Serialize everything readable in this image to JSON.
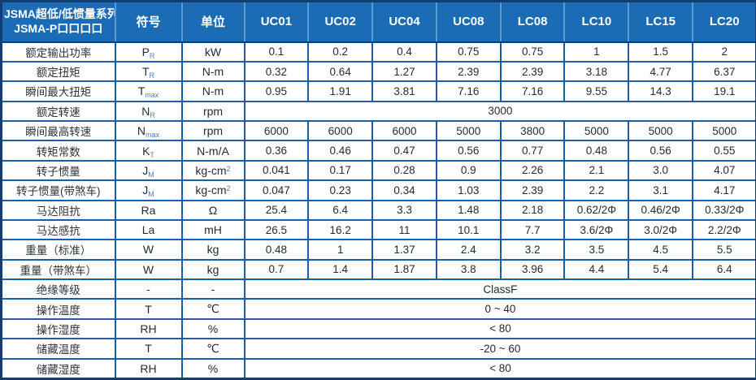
{
  "colors": {
    "header_blue": "#1b6cb5",
    "header_divider": "#5a9bd5",
    "border_navy": "#1d5ca8",
    "outer_navy": "#123c72",
    "subscript_blue": "#4f7fbe"
  },
  "table": {
    "header": {
      "series_line1": "JSMA超低/低惯量系列",
      "series_line2": "JSMA-P口口口口",
      "symbol_label": "符号",
      "unit_label": "单位",
      "models": [
        "UC01",
        "UC02",
        "UC04",
        "UC08",
        "LC08",
        "LC10",
        "LC15",
        "LC20"
      ]
    },
    "rows": [
      {
        "label": "额定输出功率",
        "symbol": {
          "base": "P",
          "sub": "R"
        },
        "unit": {
          "base": "kW"
        },
        "values": [
          "0.1",
          "0.2",
          "0.4",
          "0.75",
          "0.75",
          "1",
          "1.5",
          "2"
        ]
      },
      {
        "label": "额定扭矩",
        "symbol": {
          "base": "T",
          "sub": "R"
        },
        "unit": {
          "base": "N-m"
        },
        "values": [
          "0.32",
          "0.64",
          "1.27",
          "2.39",
          "2.39",
          "3.18",
          "4.77",
          "6.37"
        ]
      },
      {
        "label": "瞬间最大扭矩",
        "symbol": {
          "base": "T",
          "sub": "max"
        },
        "unit": {
          "base": "N-m"
        },
        "values": [
          "0.95",
          "1.91",
          "3.81",
          "7.16",
          "7.16",
          "9.55",
          "14.3",
          "19.1"
        ]
      },
      {
        "label": "额定转速",
        "symbol": {
          "base": "N",
          "sub": "R"
        },
        "unit": {
          "base": "rpm"
        },
        "merged": "3000"
      },
      {
        "label": "瞬间最高转速",
        "symbol": {
          "base": "N",
          "sub": "max"
        },
        "unit": {
          "base": "rpm"
        },
        "values": [
          "6000",
          "6000",
          "6000",
          "5000",
          "3800",
          "5000",
          "5000",
          "5000"
        ]
      },
      {
        "label": "转矩常数",
        "symbol": {
          "base": "K",
          "sub": "T"
        },
        "unit": {
          "base": "N-m/A"
        },
        "values": [
          "0.36",
          "0.46",
          "0.47",
          "0.56",
          "0.77",
          "0.48",
          "0.56",
          "0.55"
        ]
      },
      {
        "label": "转子惯量",
        "symbol": {
          "base": "J",
          "sub": "M"
        },
        "unit": {
          "base": "kg-cm",
          "sup": "2"
        },
        "values": [
          "0.041",
          "0.17",
          "0.28",
          "0.9",
          "2.26",
          "2.1",
          "3.0",
          "4.07"
        ]
      },
      {
        "label": "转子惯量(带煞车)",
        "symbol": {
          "base": "J",
          "sub": "M"
        },
        "unit": {
          "base": "kg-cm",
          "sup": "2"
        },
        "values": [
          "0.047",
          "0.23",
          "0.34",
          "1.03",
          "2.39",
          "2.2",
          "3.1",
          "4.17"
        ]
      },
      {
        "label": "马达阻抗",
        "symbol": {
          "base": "Ra"
        },
        "unit": {
          "base": "Ω"
        },
        "values": [
          "25.4",
          "6.4",
          "3.3",
          "1.48",
          "2.18",
          "0.62/2Φ",
          "0.46/2Φ",
          "0.33/2Φ"
        ]
      },
      {
        "label": "马达感抗",
        "symbol": {
          "base": "La"
        },
        "unit": {
          "base": "mH"
        },
        "values": [
          "26.5",
          "16.2",
          "11",
          "10.1",
          "7.7",
          "3.6/2Φ",
          "3.0/2Φ",
          "2.2/2Φ"
        ]
      },
      {
        "label": "重量（标准）",
        "symbol": {
          "base": "W"
        },
        "unit": {
          "base": "kg"
        },
        "values": [
          "0.48",
          "1",
          "1.37",
          "2.4",
          "3.2",
          "3.5",
          "4.5",
          "5.5"
        ]
      },
      {
        "label": "重量（带煞车）",
        "symbol": {
          "base": "W"
        },
        "unit": {
          "base": "kg"
        },
        "values": [
          "0.7",
          "1.4",
          "1.87",
          "3.8",
          "3.96",
          "4.4",
          "5.4",
          "6.4"
        ]
      },
      {
        "label": "绝缘等级",
        "symbol": {
          "base": "-"
        },
        "unit": {
          "base": "-"
        },
        "merged": "ClassF"
      },
      {
        "label": "操作温度",
        "symbol": {
          "base": "T"
        },
        "unit": {
          "base": "℃"
        },
        "merged": "0 ~ 40"
      },
      {
        "label": "操作湿度",
        "symbol": {
          "base": "RH"
        },
        "unit": {
          "base": "%"
        },
        "merged": "< 80"
      },
      {
        "label": "储藏温度",
        "symbol": {
          "base": "T"
        },
        "unit": {
          "base": "℃"
        },
        "merged": "-20 ~ 60"
      },
      {
        "label": "储藏湿度",
        "symbol": {
          "base": "RH"
        },
        "unit": {
          "base": "%"
        },
        "merged": "< 80"
      }
    ]
  }
}
